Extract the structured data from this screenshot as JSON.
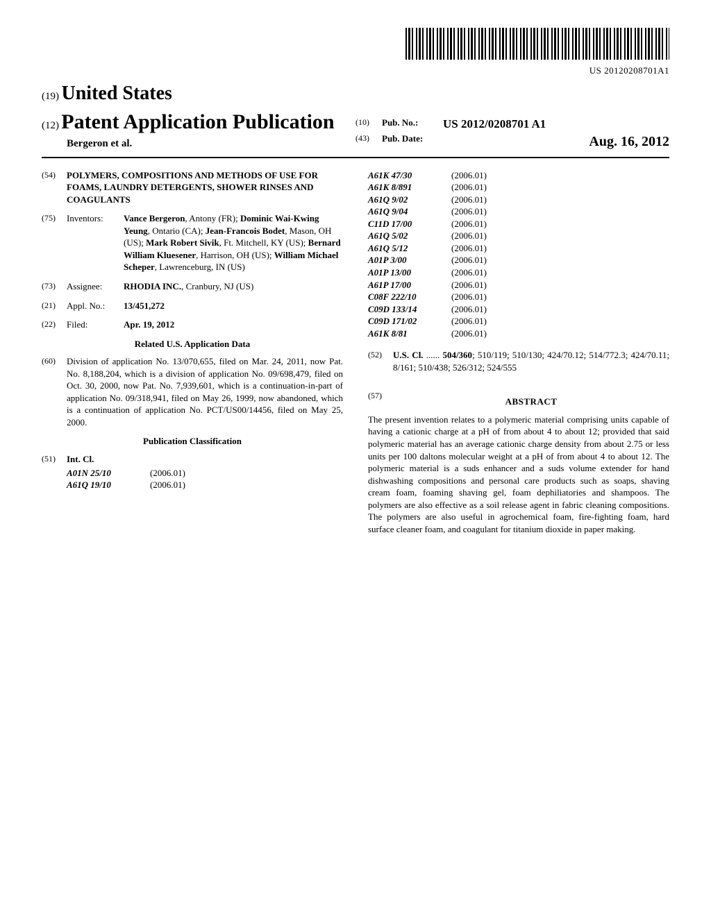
{
  "barcode_number": "US 20120208701A1",
  "country": {
    "code": "(19)",
    "name": "United States"
  },
  "doc_type": {
    "code": "(12)",
    "name": "Patent Application Publication"
  },
  "authors_line": "Bergeron et al.",
  "pub_no": {
    "code": "(10)",
    "label": "Pub. No.:",
    "value": "US 2012/0208701 A1"
  },
  "pub_date": {
    "code": "(43)",
    "label": "Pub. Date:",
    "value": "Aug. 16, 2012"
  },
  "title": {
    "code": "(54)",
    "text": "POLYMERS, COMPOSITIONS AND METHODS OF USE FOR FOAMS, LAUNDRY DETERGENTS, SHOWER RINSES AND COAGULANTS"
  },
  "inventors": {
    "code": "(75)",
    "label": "Inventors:",
    "html_parts": [
      {
        "name": "Vance Bergeron",
        "loc": ", Antony (FR); "
      },
      {
        "name": "Dominic Wai-Kwing Yeung",
        "loc": ", Ontario (CA); "
      },
      {
        "name": "Jean-Francois Bodet",
        "loc": ", Mason, OH (US); "
      },
      {
        "name": "Mark Robert Sivik",
        "loc": ", Ft. Mitchell, KY (US); "
      },
      {
        "name": "Bernard William Kluesener",
        "loc": ", Harrison, OH (US); "
      },
      {
        "name": "William Michael Scheper",
        "loc": ", Lawrenceburg, IN (US)"
      }
    ]
  },
  "assignee": {
    "code": "(73)",
    "label": "Assignee:",
    "value": "RHODIA INC.",
    "loc": ", Cranbury, NJ (US)"
  },
  "appl_no": {
    "code": "(21)",
    "label": "Appl. No.:",
    "value": "13/451,272"
  },
  "filed": {
    "code": "(22)",
    "label": "Filed:",
    "value": "Apr. 19, 2012"
  },
  "related_heading": "Related U.S. Application Data",
  "related": {
    "code": "(60)",
    "text": "Division of application No. 13/070,655, filed on Mar. 24, 2011, now Pat. No. 8,188,204, which is a division of application No. 09/698,479, filed on Oct. 30, 2000, now Pat. No. 7,939,601, which is a continuation-in-part of application No. 09/318,941, filed on May 26, 1999, now abandoned, which is a continuation of application No. PCT/US00/14456, filed on May 25, 2000."
  },
  "pub_class_heading": "Publication Classification",
  "int_cl": {
    "code": "(51)",
    "label": "Int. Cl."
  },
  "int_cl_rows_left": [
    {
      "c": "A01N 25/10",
      "v": "(2006.01)"
    },
    {
      "c": "A61Q 19/10",
      "v": "(2006.01)"
    }
  ],
  "int_cl_rows_right": [
    {
      "c": "A61K 47/30",
      "v": "(2006.01)"
    },
    {
      "c": "A61K 8/891",
      "v": "(2006.01)"
    },
    {
      "c": "A61Q 9/02",
      "v": "(2006.01)"
    },
    {
      "c": "A61Q 9/04",
      "v": "(2006.01)"
    },
    {
      "c": "C11D 17/00",
      "v": "(2006.01)"
    },
    {
      "c": "A61Q 5/02",
      "v": "(2006.01)"
    },
    {
      "c": "A61Q 5/12",
      "v": "(2006.01)"
    },
    {
      "c": "A01P 3/00",
      "v": "(2006.01)"
    },
    {
      "c": "A01P 13/00",
      "v": "(2006.01)"
    },
    {
      "c": "A61P 17/00",
      "v": "(2006.01)"
    },
    {
      "c": "C08F 222/10",
      "v": "(2006.01)"
    },
    {
      "c": "C09D 133/14",
      "v": "(2006.01)"
    },
    {
      "c": "C09D 171/02",
      "v": "(2006.01)"
    },
    {
      "c": "A61K 8/81",
      "v": "(2006.01)"
    }
  ],
  "us_cl": {
    "code": "(52)",
    "label": "U.S. Cl.",
    "dots": " ...... ",
    "text": "504/360; 510/119; 510/130; 424/70.12; 514/772.3; 424/70.11; 8/161; 510/438; 526/312; 524/555"
  },
  "abstract": {
    "code": "(57)",
    "heading": "ABSTRACT",
    "text": "The present invention relates to a polymeric material comprising units capable of having a cationic charge at a pH of from about 4 to about 12; provided that said polymeric material has an average cationic charge density from about 2.75 or less units per 100 daltons molecular weight at a pH of from about 4 to about 12. The polymeric material is a suds enhancer and a suds volume extender for hand dishwashing compositions and personal care products such as soaps, shaving cream foam, foaming shaving gel, foam dephiliatories and shampoos. The polymers are also effective as a soil release agent in fabric cleaning compositions. The polymers are also useful in agrochemical foam, fire-fighting foam, hard surface cleaner foam, and coagulant for titanium dioxide in paper making."
  }
}
